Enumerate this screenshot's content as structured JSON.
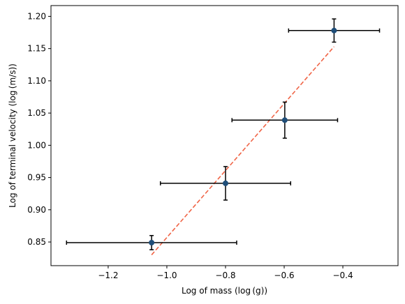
{
  "chart_data": {
    "type": "scatter",
    "title": "",
    "xlabel": "Log of mass (log (g))",
    "ylabel": "Log of terminal velocity (log (m/s))",
    "xlim": [
      -1.395,
      -0.212
    ],
    "ylim": [
      0.8133,
      1.2167
    ],
    "grid": false,
    "legend": "none",
    "x_ticks": [
      {
        "value": -1.2,
        "label": "−1.2"
      },
      {
        "value": -1.0,
        "label": "−1.0"
      },
      {
        "value": -0.8,
        "label": "−0.8"
      },
      {
        "value": -0.6,
        "label": "−0.6"
      },
      {
        "value": -0.4,
        "label": "−0.4"
      }
    ],
    "y_ticks": [
      {
        "value": 0.85,
        "label": "0.85"
      },
      {
        "value": 0.9,
        "label": "0.90"
      },
      {
        "value": 0.95,
        "label": "0.95"
      },
      {
        "value": 1.0,
        "label": "1.00"
      },
      {
        "value": 1.05,
        "label": "1.05"
      },
      {
        "value": 1.1,
        "label": "1.10"
      },
      {
        "value": 1.15,
        "label": "1.15"
      },
      {
        "value": 1.2,
        "label": "1.20"
      }
    ],
    "series": [
      {
        "marker_color": "#1f4e79",
        "errorbar_color": "#000000",
        "points": [
          {
            "x": -1.052,
            "y": 0.849,
            "x_err": 0.29,
            "y_err": 0.011
          },
          {
            "x": -0.8,
            "y": 0.941,
            "x_err": 0.222,
            "y_err": 0.026
          },
          {
            "x": -0.598,
            "y": 1.039,
            "x_err": 0.18,
            "y_err": 0.028
          },
          {
            "x": -0.43,
            "y": 1.178,
            "x_err": 0.155,
            "y_err": 0.018
          }
        ]
      }
    ],
    "fit_line": {
      "color": "#f06446",
      "style": "dashed",
      "x": [
        -1.052,
        -0.43
      ],
      "y": [
        0.83,
        1.153
      ]
    }
  }
}
